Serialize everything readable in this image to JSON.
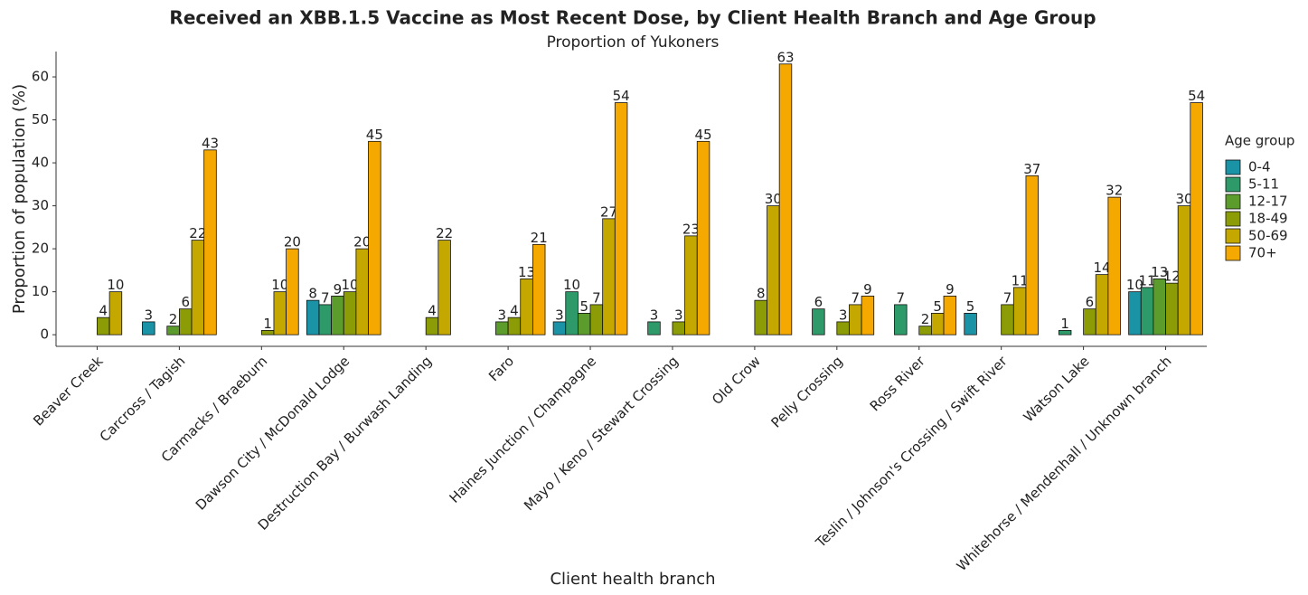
{
  "chart_data": {
    "type": "bar",
    "title": "Received an XBB.1.5 Vaccine as Most Recent Dose, by Client Health Branch and Age Group",
    "subtitle": "Proportion of Yukoners",
    "x_label": "Client health branch",
    "y_label": "Proportion of population (%)",
    "legend_title": "Age group",
    "legend": "right",
    "categories": [
      "Beaver Creek",
      "Carcross / Tagish",
      "Carmacks / Braeburn",
      "Dawson City / McDonald Lodge",
      "Destruction Bay / Burwash Landing",
      "Faro",
      "Haines Junction / Champagne",
      "Mayo / Keno / Stewart Crossing",
      "Old Crow",
      "Pelly Crossing",
      "Ross River",
      "Teslin / Johnson's Crossing / Swift River",
      "Watson Lake",
      "Whitehorse / Mendenhall / Unknown branch"
    ],
    "series": [
      {
        "name": "0-4",
        "color": "#1a93a6",
        "values": [
          null,
          3,
          null,
          8,
          null,
          null,
          3,
          null,
          null,
          null,
          null,
          5,
          null,
          10
        ]
      },
      {
        "name": "5-11",
        "color": "#2e9a6a",
        "values": [
          null,
          null,
          null,
          7,
          null,
          null,
          10,
          3,
          null,
          6,
          7,
          null,
          1,
          11
        ]
      },
      {
        "name": "12-17",
        "color": "#5c9c2c",
        "values": [
          null,
          2,
          null,
          9,
          null,
          3,
          5,
          null,
          null,
          null,
          null,
          null,
          null,
          13
        ]
      },
      {
        "name": "18-49",
        "color": "#8c9c06",
        "values": [
          4,
          6,
          1,
          10,
          4,
          4,
          7,
          3,
          8,
          3,
          2,
          7,
          6,
          12
        ]
      },
      {
        "name": "50-69",
        "color": "#c4a800",
        "values": [
          10,
          22,
          10,
          20,
          22,
          13,
          27,
          23,
          30,
          7,
          5,
          11,
          14,
          30
        ]
      },
      {
        "name": "70+",
        "color": "#f5a800",
        "values": [
          null,
          43,
          20,
          45,
          null,
          21,
          54,
          45,
          63,
          9,
          9,
          37,
          32,
          54
        ]
      }
    ],
    "ylim": [
      -2.7,
      65.9
    ],
    "yticks": [
      0,
      10,
      20,
      30,
      40,
      50,
      60
    ]
  }
}
